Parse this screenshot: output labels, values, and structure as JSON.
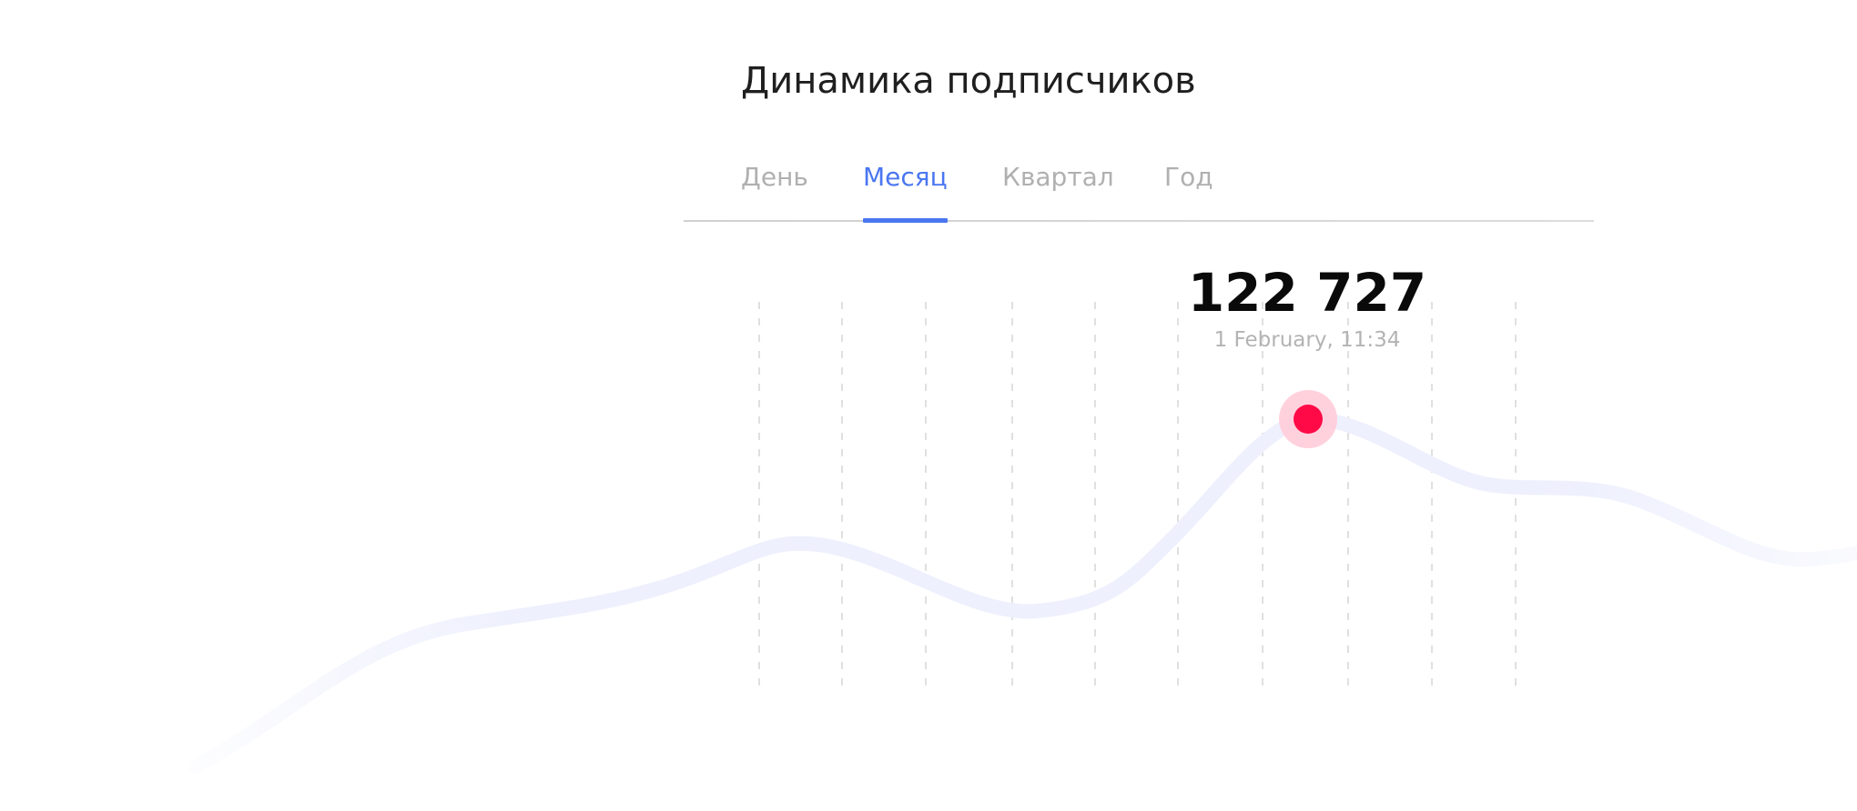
{
  "header": {
    "title": "Динамика подписчиков"
  },
  "tabs": [
    {
      "label": "День",
      "active": false
    },
    {
      "label": "Месяц",
      "active": true
    },
    {
      "label": "Квартал",
      "active": false
    },
    {
      "label": "Год",
      "active": false
    }
  ],
  "chart_data": {
    "type": "line",
    "highlight": {
      "value": "122 727",
      "date": "1 February, 11:34"
    },
    "grid": "vertical dashed",
    "colors": {
      "line": "#eef0fd",
      "point": "#ff0a47",
      "point_halo": "#ffccd9",
      "accent": "#4a76f0"
    }
  }
}
